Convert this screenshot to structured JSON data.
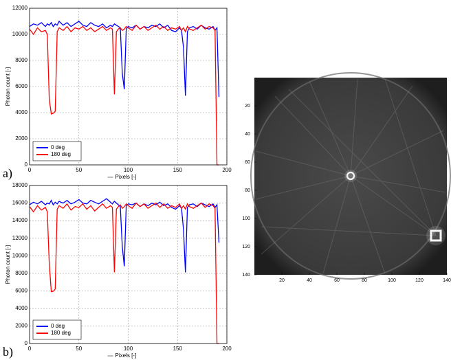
{
  "chart_data": [
    {
      "type": "line",
      "panel_label": "a)",
      "x_label": "Pixels [-]",
      "y_label": "Photon count [-]",
      "xlim": [
        0,
        200
      ],
      "xticks": [
        0,
        50,
        100,
        150,
        200
      ],
      "ylim": [
        0,
        12000
      ],
      "yticks": [
        0,
        2000,
        4000,
        6000,
        8000,
        10000,
        12000
      ],
      "grid": true,
      "legend": "lower left",
      "x": [
        0,
        4,
        8,
        12,
        16,
        18,
        20,
        22,
        24,
        26,
        28,
        30,
        34,
        38,
        42,
        46,
        50,
        54,
        58,
        62,
        66,
        70,
        74,
        78,
        82,
        84,
        86,
        88,
        90,
        92,
        94,
        96,
        98,
        100,
        104,
        108,
        112,
        116,
        120,
        124,
        128,
        132,
        136,
        140,
        144,
        148,
        152,
        154,
        156,
        158,
        160,
        162,
        166,
        170,
        174,
        178,
        182,
        186,
        188,
        190,
        192
      ],
      "series": [
        {
          "name": "0 deg",
          "color": "#0000ff",
          "values": [
            10600,
            10800,
            10700,
            10900,
            10600,
            10800,
            10700,
            10900,
            10600,
            10800,
            10700,
            11000,
            10700,
            10900,
            10600,
            10800,
            11000,
            10700,
            10600,
            10900,
            10700,
            10600,
            10800,
            10500,
            10700,
            10600,
            10800,
            10700,
            10600,
            10500,
            7000,
            5800,
            10400,
            10600,
            10500,
            10700,
            10400,
            10600,
            10500,
            10700,
            10600,
            10800,
            10500,
            10700,
            10300,
            10200,
            10500,
            10300,
            9000,
            5300,
            10200,
            10500,
            10600,
            10400,
            10700,
            10500,
            10400,
            10600,
            10300,
            10500,
            5200
          ]
        },
        {
          "name": "180 deg",
          "color": "#ff0000",
          "values": [
            10400,
            10000,
            10500,
            10200,
            10300,
            10000,
            5000,
            3900,
            3950,
            4100,
            10200,
            10500,
            10300,
            10600,
            10200,
            10500,
            10400,
            10600,
            10300,
            10500,
            10200,
            10400,
            10600,
            10300,
            10500,
            10400,
            5400,
            10200,
            10400,
            10500,
            10300,
            10400,
            10600,
            10500,
            10300,
            10700,
            10400,
            10600,
            10300,
            10500,
            10700,
            10400,
            10600,
            10300,
            10500,
            10400,
            10600,
            10300,
            10500,
            10200,
            10600,
            10400,
            10300,
            10500,
            10700,
            10400,
            10600,
            10500,
            10300,
            0,
            0
          ]
        }
      ]
    },
    {
      "type": "line",
      "panel_label": "b)",
      "x_label": "Pixels [-]",
      "y_label": "Photon count [-]",
      "xlim": [
        0,
        200
      ],
      "xticks": [
        0,
        50,
        100,
        150,
        200
      ],
      "ylim": [
        0,
        18000
      ],
      "yticks": [
        0,
        2000,
        4000,
        6000,
        8000,
        10000,
        12000,
        14000,
        16000,
        18000
      ],
      "grid": true,
      "legend": "lower left",
      "x": [
        0,
        4,
        8,
        12,
        16,
        18,
        20,
        22,
        24,
        26,
        28,
        30,
        34,
        38,
        42,
        46,
        50,
        54,
        58,
        62,
        66,
        70,
        74,
        78,
        82,
        84,
        86,
        88,
        90,
        92,
        94,
        96,
        98,
        100,
        104,
        108,
        112,
        116,
        120,
        124,
        128,
        132,
        136,
        140,
        144,
        148,
        152,
        154,
        156,
        158,
        160,
        162,
        166,
        170,
        174,
        178,
        182,
        186,
        188,
        190,
        192
      ],
      "series": [
        {
          "name": "0 deg",
          "color": "#0000ff",
          "values": [
            15800,
            16100,
            15900,
            16200,
            15800,
            16000,
            15900,
            16300,
            15800,
            16100,
            15900,
            16200,
            16000,
            16300,
            15900,
            16100,
            16400,
            16000,
            15900,
            16300,
            16100,
            15900,
            16200,
            16500,
            16100,
            15900,
            16200,
            16000,
            15800,
            15600,
            11000,
            8800,
            15700,
            15900,
            15800,
            16000,
            15600,
            15900,
            15700,
            16000,
            15800,
            16100,
            15700,
            15900,
            15500,
            15300,
            15700,
            15400,
            13000,
            8100,
            15500,
            15800,
            15900,
            15600,
            16000,
            15800,
            15600,
            15900,
            15500,
            15800,
            11500
          ]
        },
        {
          "name": "180 deg",
          "color": "#ff0000",
          "values": [
            15600,
            15000,
            15700,
            15200,
            15500,
            15000,
            9000,
            5900,
            5950,
            6200,
            15300,
            15700,
            15400,
            15900,
            15200,
            15600,
            15500,
            15900,
            15300,
            15700,
            15100,
            15500,
            15900,
            15400,
            15700,
            15500,
            8100,
            15300,
            15600,
            15800,
            15400,
            15600,
            15900,
            15700,
            15400,
            16000,
            15600,
            15900,
            15400,
            15700,
            16000,
            15500,
            15900,
            15400,
            15700,
            15500,
            15900,
            15400,
            15700,
            15300,
            15900,
            15600,
            15400,
            15700,
            16000,
            15500,
            15900,
            15700,
            15400,
            0,
            0
          ]
        }
      ]
    },
    {
      "type": "image",
      "xlim": [
        0,
        140
      ],
      "xticks": [
        20,
        40,
        60,
        80,
        100,
        120,
        140
      ],
      "ylim": [
        0,
        140
      ],
      "yticks": [
        20,
        40,
        60,
        80,
        100,
        120,
        140
      ]
    }
  ]
}
